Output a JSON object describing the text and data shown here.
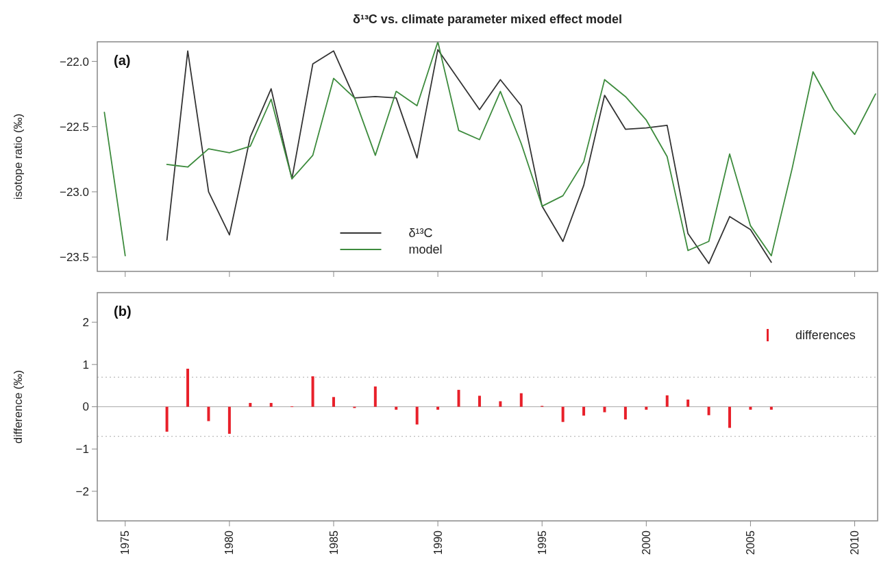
{
  "chart_data": [
    {
      "type": "line",
      "title": "δ¹³C vs. climate parameter mixed effect model",
      "ylabel": "isotope ratio (‰)",
      "annotations": [
        "(a)"
      ],
      "xlim": [
        1973.66,
        2011.1
      ],
      "xticks": [
        1975,
        1980,
        1985,
        1990,
        1995,
        2000,
        2005,
        2010
      ],
      "ylim": [
        -23.61,
        -21.85
      ],
      "yticks": [
        {
          "value": -22,
          "label": "−22.0"
        },
        {
          "value": -22.5,
          "label": "−22.5"
        },
        {
          "value": -23,
          "label": "−23.0"
        },
        {
          "value": -23.5,
          "label": "−23.5"
        }
      ],
      "tick_labels": "y",
      "legend": "bottom",
      "grid": false,
      "line_style": "solid",
      "marker": "none",
      "series": [
        {
          "name": "δ¹³C",
          "color": "#333333",
          "x": [
            1977,
            1978,
            1979,
            1980,
            1981,
            1982,
            1983,
            1984,
            1985,
            1986,
            1987,
            1988,
            1989,
            1990,
            1991,
            1992,
            1993,
            1994,
            1995,
            1996,
            1997,
            1998,
            1999,
            2000,
            2001,
            2002,
            2003,
            2004,
            2005,
            2006
          ],
          "values": [
            -23.37,
            -21.92,
            -23.0,
            -23.33,
            -22.58,
            -22.21,
            -22.9,
            -22.02,
            -21.92,
            -22.28,
            -22.27,
            -22.28,
            -22.74,
            -21.91,
            -22.14,
            -22.37,
            -22.14,
            -22.34,
            -23.11,
            -23.38,
            -22.95,
            -22.26,
            -22.52,
            -22.51,
            -22.49,
            -23.32,
            -23.55,
            -23.19,
            -23.29,
            -23.54
          ]
        },
        {
          "name": "model",
          "color": "#3d8b3d",
          "x": [
            1974,
            1975,
            1976,
            1977,
            1978,
            1979,
            1980,
            1981,
            1982,
            1983,
            1984,
            1985,
            1986,
            1987,
            1988,
            1989,
            1990,
            1991,
            1992,
            1993,
            1994,
            1995,
            1996,
            1997,
            1998,
            1999,
            2000,
            2001,
            2002,
            2003,
            2004,
            2005,
            2006,
            2007,
            2008,
            2009,
            2010,
            2011
          ],
          "values": [
            -22.39,
            -23.49,
            null,
            -22.79,
            -22.81,
            -22.67,
            -22.7,
            -22.65,
            -22.29,
            -22.9,
            -22.72,
            -22.13,
            -22.28,
            -22.72,
            -22.23,
            -22.34,
            -21.85,
            -22.53,
            -22.6,
            -22.23,
            -22.63,
            -23.11,
            -23.03,
            -22.77,
            -22.14,
            -22.27,
            -22.45,
            -22.73,
            -23.45,
            -23.38,
            -22.71,
            -23.26,
            -23.49,
            -22.82,
            -22.08,
            -22.37,
            -22.56,
            -22.25
          ]
        }
      ]
    },
    {
      "type": "bar",
      "ylabel": "difference (‰)",
      "annotations": [
        "(b)"
      ],
      "xlim": [
        1973.66,
        2011.1
      ],
      "xticks": [
        1975,
        1980,
        1985,
        1990,
        1995,
        2000,
        2005,
        2010
      ],
      "ylim": [
        -2.7,
        2.7
      ],
      "yticks": [
        {
          "value": -2,
          "label": "−2"
        },
        {
          "value": -1,
          "label": "−1"
        },
        0,
        1,
        2
      ],
      "legend": "top right",
      "grid": false,
      "ref_lines": [
        {
          "axis": "y",
          "value": 0,
          "color": "#aaaaaa",
          "line_style": "solid"
        },
        {
          "axis": "y",
          "value": 0.7,
          "color": "#bbbbbb",
          "line_style": "dotted"
        },
        {
          "axis": "y",
          "value": -0.7,
          "color": "#bbbbbb",
          "line_style": "dotted"
        }
      ],
      "series": [
        {
          "name": "differences",
          "color": "#e8202a",
          "x": [
            1977,
            1978,
            1979,
            1980,
            1981,
            1982,
            1983,
            1984,
            1985,
            1986,
            1987,
            1988,
            1989,
            1990,
            1991,
            1992,
            1993,
            1994,
            1995,
            1996,
            1997,
            1998,
            1999,
            2000,
            2001,
            2002,
            2003,
            2004,
            2005,
            2006
          ],
          "values": [
            -0.59,
            0.9,
            -0.34,
            -0.64,
            0.09,
            0.09,
            0.01,
            0.72,
            0.23,
            -0.03,
            0.48,
            -0.07,
            -0.42,
            -0.07,
            0.4,
            0.26,
            0.13,
            0.32,
            0.02,
            -0.36,
            -0.21,
            -0.13,
            -0.3,
            -0.07,
            0.27,
            0.17,
            -0.2,
            -0.5,
            -0.07,
            -0.07
          ]
        }
      ]
    }
  ]
}
